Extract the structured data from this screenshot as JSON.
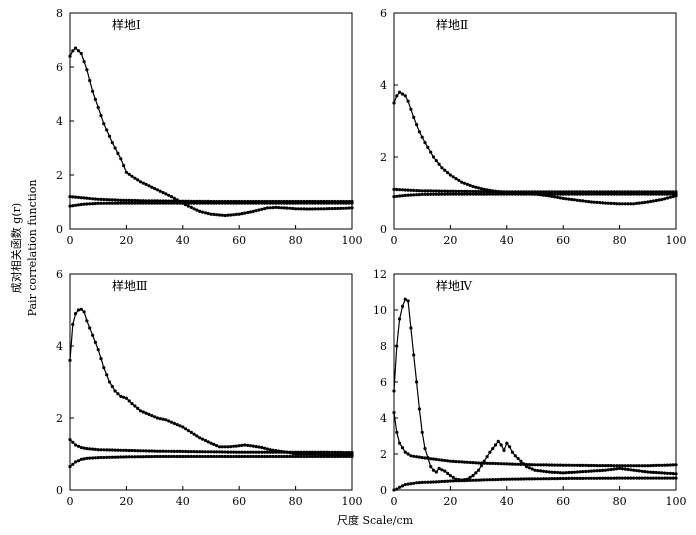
{
  "figure": {
    "ylabel_cn": "成对相关函数 g(r)",
    "ylabel_en": "Pair correlation function",
    "xlabel": "尺度 Scale/cm"
  },
  "chart_data": [
    {
      "type": "line",
      "title": "样地Ⅰ",
      "xlim": [
        0,
        100
      ],
      "ylim": [
        0,
        8
      ],
      "xticks": [
        0,
        20,
        40,
        60,
        80,
        100
      ],
      "yticks": [
        0,
        2,
        4,
        6,
        8
      ],
      "series": [
        {
          "x": [
            0,
            1,
            2,
            3,
            4,
            6,
            8,
            10,
            12,
            15,
            18,
            20,
            22,
            25,
            28,
            30,
            33,
            36,
            38,
            40,
            43,
            46,
            50,
            55,
            60,
            65,
            70,
            73,
            76,
            80,
            85,
            90,
            95,
            100
          ],
          "y": [
            6.4,
            6.6,
            6.7,
            6.6,
            6.5,
            5.9,
            5.1,
            4.5,
            3.9,
            3.2,
            2.6,
            2.1,
            1.95,
            1.75,
            1.6,
            1.5,
            1.35,
            1.2,
            1.08,
            0.95,
            0.8,
            0.65,
            0.55,
            0.5,
            0.55,
            0.65,
            0.78,
            0.8,
            0.78,
            0.75,
            0.74,
            0.75,
            0.76,
            0.78
          ]
        },
        {
          "x": [
            0,
            5,
            10,
            20,
            30,
            40,
            50,
            60,
            70,
            80,
            90,
            100
          ],
          "y": [
            1.2,
            1.15,
            1.1,
            1.06,
            1.04,
            1.03,
            1.02,
            1.02,
            1.02,
            1.02,
            1.02,
            1.02
          ]
        },
        {
          "x": [
            0,
            5,
            10,
            20,
            30,
            40,
            50,
            60,
            70,
            80,
            90,
            100
          ],
          "y": [
            0.85,
            0.92,
            0.95,
            0.96,
            0.96,
            0.96,
            0.96,
            0.96,
            0.96,
            0.96,
            0.96,
            0.96
          ]
        }
      ]
    },
    {
      "type": "line",
      "title": "样地Ⅱ",
      "xlim": [
        0,
        100
      ],
      "ylim": [
        0,
        6
      ],
      "xticks": [
        0,
        20,
        40,
        60,
        80,
        100
      ],
      "yticks": [
        0,
        2,
        4,
        6
      ],
      "series": [
        {
          "x": [
            0,
            1,
            2,
            3,
            4,
            5,
            7,
            9,
            11,
            14,
            17,
            20,
            24,
            28,
            32,
            36,
            40,
            45,
            50,
            55,
            60,
            65,
            70,
            75,
            80,
            85,
            90,
            95,
            100
          ],
          "y": [
            3.5,
            3.7,
            3.8,
            3.75,
            3.7,
            3.55,
            3.1,
            2.7,
            2.4,
            2.0,
            1.7,
            1.5,
            1.3,
            1.18,
            1.1,
            1.05,
            1.02,
            1.0,
            0.97,
            0.92,
            0.85,
            0.8,
            0.75,
            0.72,
            0.7,
            0.7,
            0.75,
            0.82,
            0.92
          ]
        },
        {
          "x": [
            0,
            5,
            10,
            20,
            30,
            40,
            50,
            60,
            70,
            80,
            90,
            100
          ],
          "y": [
            1.1,
            1.08,
            1.06,
            1.05,
            1.04,
            1.03,
            1.03,
            1.03,
            1.03,
            1.03,
            1.03,
            1.03
          ]
        },
        {
          "x": [
            0,
            5,
            10,
            20,
            30,
            40,
            50,
            60,
            70,
            80,
            90,
            100
          ],
          "y": [
            0.9,
            0.94,
            0.96,
            0.97,
            0.97,
            0.97,
            0.97,
            0.97,
            0.97,
            0.97,
            0.97,
            0.97
          ]
        }
      ]
    },
    {
      "type": "line",
      "title": "样地Ⅲ",
      "xlim": [
        0,
        100
      ],
      "ylim": [
        0,
        6
      ],
      "xticks": [
        0,
        20,
        40,
        60,
        80,
        100
      ],
      "yticks": [
        0,
        2,
        4,
        6
      ],
      "series": [
        {
          "x": [
            0,
            1,
            2,
            3,
            4,
            5,
            6,
            8,
            10,
            12,
            14,
            16,
            18,
            20,
            22,
            25,
            28,
            31,
            34,
            37,
            40,
            43,
            46,
            50,
            53,
            56,
            59,
            62,
            65,
            68,
            71,
            74,
            77,
            80,
            85,
            90,
            95,
            100
          ],
          "y": [
            3.6,
            4.6,
            4.9,
            5.0,
            5.02,
            4.95,
            4.7,
            4.3,
            3.9,
            3.4,
            3.0,
            2.75,
            2.6,
            2.55,
            2.4,
            2.2,
            2.1,
            2.0,
            1.95,
            1.85,
            1.75,
            1.6,
            1.45,
            1.3,
            1.2,
            1.2,
            1.22,
            1.25,
            1.22,
            1.18,
            1.12,
            1.08,
            1.05,
            1.0,
            1.0,
            0.98,
            0.98,
            0.98
          ]
        },
        {
          "x": [
            0,
            2,
            4,
            6,
            10,
            20,
            30,
            40,
            50,
            60,
            70,
            80,
            90,
            100
          ],
          "y": [
            1.4,
            1.25,
            1.18,
            1.15,
            1.12,
            1.1,
            1.08,
            1.07,
            1.06,
            1.05,
            1.05,
            1.05,
            1.05,
            1.04
          ]
        },
        {
          "x": [
            0,
            2,
            4,
            6,
            10,
            20,
            30,
            40,
            50,
            60,
            70,
            80,
            90,
            100
          ],
          "y": [
            0.65,
            0.78,
            0.85,
            0.88,
            0.9,
            0.92,
            0.93,
            0.93,
            0.93,
            0.93,
            0.93,
            0.93,
            0.93,
            0.93
          ]
        }
      ]
    },
    {
      "type": "line",
      "title": "样地Ⅳ",
      "xlim": [
        0,
        100
      ],
      "ylim": [
        0,
        12
      ],
      "xticks": [
        0,
        20,
        40,
        60,
        80,
        100
      ],
      "yticks": [
        0,
        2,
        4,
        6,
        8,
        10,
        12
      ],
      "series": [
        {
          "x": [
            0,
            1,
            2,
            3,
            4,
            5,
            6,
            7,
            8,
            9,
            10,
            11,
            12,
            13,
            14,
            15,
            16,
            18,
            20,
            22,
            24,
            26,
            28,
            30,
            32,
            34,
            36,
            37,
            38,
            39,
            40,
            41,
            42,
            43,
            45,
            47,
            50,
            55,
            60,
            65,
            70,
            75,
            80,
            85,
            90,
            95,
            100
          ],
          "y": [
            5.5,
            8.0,
            9.5,
            10.2,
            10.6,
            10.5,
            9.0,
            7.5,
            6.0,
            4.5,
            3.2,
            2.3,
            1.8,
            1.3,
            1.1,
            1.0,
            1.2,
            1.05,
            0.8,
            0.6,
            0.55,
            0.6,
            0.8,
            1.1,
            1.6,
            2.1,
            2.5,
            2.7,
            2.5,
            2.2,
            2.6,
            2.4,
            2.1,
            1.9,
            1.6,
            1.3,
            1.1,
            1.0,
            0.95,
            1.0,
            1.05,
            1.1,
            1.2,
            1.1,
            1.0,
            0.95,
            0.9
          ]
        },
        {
          "x": [
            0,
            1,
            2,
            4,
            6,
            8,
            10,
            15,
            20,
            30,
            40,
            50,
            60,
            70,
            80,
            90,
            100
          ],
          "y": [
            4.3,
            3.2,
            2.6,
            2.1,
            1.9,
            1.85,
            1.8,
            1.7,
            1.6,
            1.5,
            1.45,
            1.4,
            1.38,
            1.36,
            1.35,
            1.35,
            1.4
          ]
        },
        {
          "x": [
            0,
            1,
            2,
            4,
            6,
            8,
            10,
            15,
            20,
            30,
            40,
            50,
            60,
            70,
            80,
            90,
            100
          ],
          "y": [
            0.0,
            0.05,
            0.15,
            0.3,
            0.35,
            0.4,
            0.42,
            0.45,
            0.5,
            0.55,
            0.6,
            0.62,
            0.64,
            0.65,
            0.66,
            0.66,
            0.66
          ]
        }
      ]
    }
  ]
}
